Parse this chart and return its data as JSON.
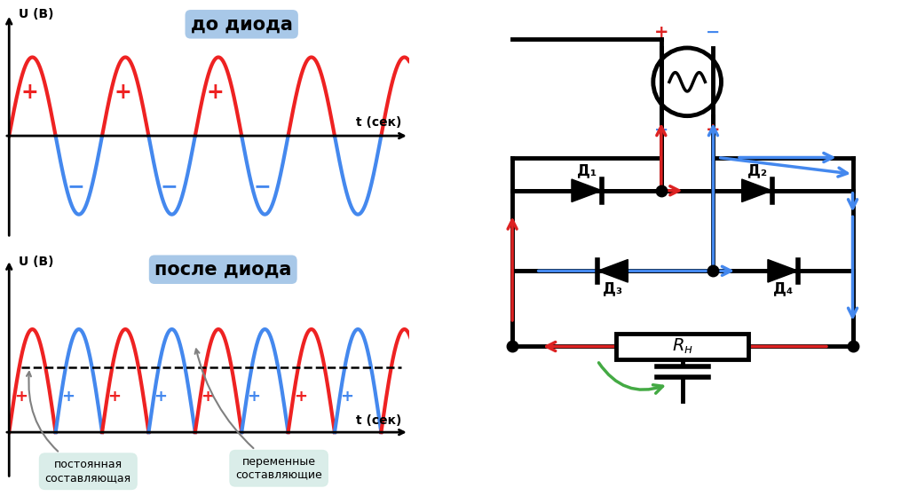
{
  "bg_color": "#ffffff",
  "top_label": "до диода",
  "bottom_label": "после диода",
  "label_bg": "#a8c8e8",
  "ylabel": "U (В)",
  "xlabel": "t (сек)",
  "red_color": "#ee2222",
  "blue_color": "#4488ee",
  "dc_level": 0.63,
  "annotation_dc": "постоянная\nсоставляющая",
  "annotation_ac": "переменные\nсоставляющие",
  "bubble_color": "#d8ede8",
  "red_arrow_color": "#dd2222",
  "blue_arrow_color": "#4488ee",
  "green_color": "#44aa44"
}
